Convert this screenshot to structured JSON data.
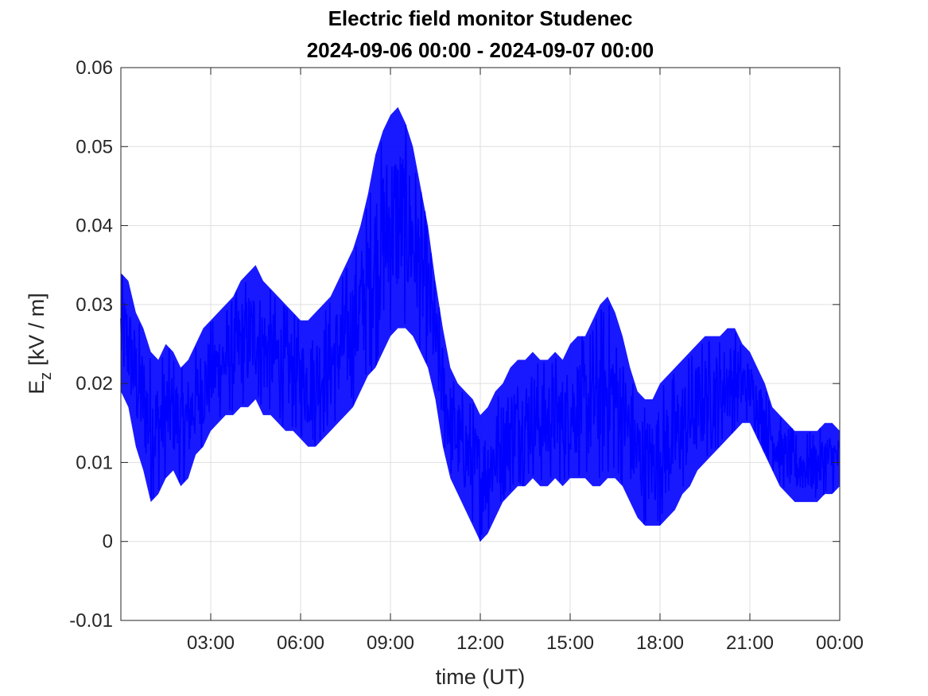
{
  "chart_data": {
    "type": "line",
    "title": "Electric field monitor Studenec",
    "subtitle": "2024-09-06 00:00 - 2024-09-07 00:00",
    "xlabel": "time (UT)",
    "ylabel_main": "E",
    "ylabel_sub": "z",
    "ylabel_unit": "[kV / m]",
    "xlim": [
      "2024-09-06 00:00",
      "2024-09-07 00:00"
    ],
    "ylim": [
      -0.01,
      0.06
    ],
    "x_ticks": [
      {
        "value": "2024-09-06 03:00",
        "label": "03:00"
      },
      {
        "value": "2024-09-06 06:00",
        "label": "06:00"
      },
      {
        "value": "2024-09-06 09:00",
        "label": "09:00"
      },
      {
        "value": "2024-09-06 12:00",
        "label": "12:00"
      },
      {
        "value": "2024-09-06 15:00",
        "label": "15:00"
      },
      {
        "value": "2024-09-06 18:00",
        "label": "18:00"
      },
      {
        "value": "2024-09-06 21:00",
        "label": "21:00"
      },
      {
        "value": "2024-09-07 00:00",
        "label": "00:00"
      }
    ],
    "y_ticks": [
      {
        "value": 0.06,
        "label": "0.06"
      },
      {
        "value": 0.05,
        "label": "0.05"
      },
      {
        "value": 0.04,
        "label": "0.04"
      },
      {
        "value": 0.03,
        "label": "0.03"
      },
      {
        "value": 0.02,
        "label": "0.02"
      },
      {
        "value": 0.01,
        "label": "0.01"
      },
      {
        "value": 0,
        "label": "0"
      },
      {
        "value": -0.01,
        "label": "-0.01"
      }
    ],
    "grid": true,
    "series": [
      {
        "color": "#0000ff",
        "x": [
          "2024-09-06 00:00",
          "2024-09-06 00:15",
          "2024-09-06 00:30",
          "2024-09-06 00:45",
          "2024-09-06 01:00",
          "2024-09-06 01:15",
          "2024-09-06 01:30",
          "2024-09-06 01:45",
          "2024-09-06 02:00",
          "2024-09-06 02:15",
          "2024-09-06 02:30",
          "2024-09-06 02:45",
          "2024-09-06 03:00",
          "2024-09-06 03:15",
          "2024-09-06 03:30",
          "2024-09-06 03:45",
          "2024-09-06 04:00",
          "2024-09-06 04:15",
          "2024-09-06 04:30",
          "2024-09-06 04:45",
          "2024-09-06 05:00",
          "2024-09-06 05:15",
          "2024-09-06 05:30",
          "2024-09-06 05:45",
          "2024-09-06 06:00",
          "2024-09-06 06:15",
          "2024-09-06 06:30",
          "2024-09-06 06:45",
          "2024-09-06 07:00",
          "2024-09-06 07:15",
          "2024-09-06 07:30",
          "2024-09-06 07:45",
          "2024-09-06 08:00",
          "2024-09-06 08:15",
          "2024-09-06 08:30",
          "2024-09-06 08:45",
          "2024-09-06 09:00",
          "2024-09-06 09:15",
          "2024-09-06 09:30",
          "2024-09-06 09:45",
          "2024-09-06 10:00",
          "2024-09-06 10:15",
          "2024-09-06 10:30",
          "2024-09-06 10:45",
          "2024-09-06 11:00",
          "2024-09-06 11:15",
          "2024-09-06 11:30",
          "2024-09-06 11:45",
          "2024-09-06 12:00",
          "2024-09-06 12:15",
          "2024-09-06 12:30",
          "2024-09-06 12:45",
          "2024-09-06 13:00",
          "2024-09-06 13:15",
          "2024-09-06 13:30",
          "2024-09-06 13:45",
          "2024-09-06 14:00",
          "2024-09-06 14:15",
          "2024-09-06 14:30",
          "2024-09-06 14:45",
          "2024-09-06 15:00",
          "2024-09-06 15:15",
          "2024-09-06 15:30",
          "2024-09-06 15:45",
          "2024-09-06 16:00",
          "2024-09-06 16:15",
          "2024-09-06 16:30",
          "2024-09-06 16:45",
          "2024-09-06 17:00",
          "2024-09-06 17:15",
          "2024-09-06 17:30",
          "2024-09-06 17:45",
          "2024-09-06 18:00",
          "2024-09-06 18:15",
          "2024-09-06 18:30",
          "2024-09-06 18:45",
          "2024-09-06 19:00",
          "2024-09-06 19:15",
          "2024-09-06 19:30",
          "2024-09-06 19:45",
          "2024-09-06 20:00",
          "2024-09-06 20:15",
          "2024-09-06 20:30",
          "2024-09-06 20:45",
          "2024-09-06 21:00",
          "2024-09-06 21:15",
          "2024-09-06 21:30",
          "2024-09-06 21:45",
          "2024-09-06 22:00",
          "2024-09-06 22:15",
          "2024-09-06 22:30",
          "2024-09-06 22:45",
          "2024-09-06 23:00",
          "2024-09-06 23:15",
          "2024-09-06 23:30",
          "2024-09-06 23:45",
          "2024-09-07 00:00"
        ],
        "y_min": [
          0.019,
          0.017,
          0.012,
          0.009,
          0.005,
          0.006,
          0.008,
          0.009,
          0.007,
          0.008,
          0.011,
          0.012,
          0.014,
          0.015,
          0.016,
          0.016,
          0.017,
          0.017,
          0.018,
          0.016,
          0.016,
          0.015,
          0.014,
          0.014,
          0.013,
          0.012,
          0.012,
          0.013,
          0.014,
          0.015,
          0.016,
          0.017,
          0.019,
          0.021,
          0.022,
          0.024,
          0.026,
          0.027,
          0.027,
          0.026,
          0.024,
          0.022,
          0.018,
          0.012,
          0.008,
          0.006,
          0.004,
          0.002,
          0.0,
          0.001,
          0.003,
          0.005,
          0.006,
          0.007,
          0.007,
          0.008,
          0.007,
          0.007,
          0.008,
          0.007,
          0.008,
          0.008,
          0.008,
          0.007,
          0.007,
          0.008,
          0.008,
          0.007,
          0.005,
          0.003,
          0.002,
          0.002,
          0.002,
          0.003,
          0.004,
          0.006,
          0.007,
          0.009,
          0.01,
          0.011,
          0.012,
          0.013,
          0.014,
          0.015,
          0.015,
          0.013,
          0.011,
          0.009,
          0.007,
          0.006,
          0.005,
          0.005,
          0.005,
          0.005,
          0.006,
          0.006,
          0.007
        ],
        "y_max": [
          0.034,
          0.033,
          0.029,
          0.027,
          0.024,
          0.023,
          0.025,
          0.024,
          0.022,
          0.023,
          0.025,
          0.027,
          0.028,
          0.029,
          0.03,
          0.031,
          0.033,
          0.034,
          0.035,
          0.033,
          0.032,
          0.031,
          0.03,
          0.029,
          0.028,
          0.028,
          0.029,
          0.03,
          0.031,
          0.033,
          0.035,
          0.037,
          0.04,
          0.044,
          0.049,
          0.052,
          0.054,
          0.055,
          0.053,
          0.05,
          0.045,
          0.04,
          0.033,
          0.027,
          0.022,
          0.02,
          0.019,
          0.018,
          0.016,
          0.017,
          0.019,
          0.02,
          0.022,
          0.023,
          0.023,
          0.024,
          0.023,
          0.023,
          0.024,
          0.023,
          0.025,
          0.026,
          0.026,
          0.028,
          0.03,
          0.031,
          0.029,
          0.026,
          0.022,
          0.019,
          0.018,
          0.018,
          0.02,
          0.021,
          0.022,
          0.023,
          0.024,
          0.025,
          0.026,
          0.026,
          0.026,
          0.027,
          0.027,
          0.025,
          0.024,
          0.022,
          0.02,
          0.017,
          0.016,
          0.015,
          0.014,
          0.014,
          0.014,
          0.014,
          0.015,
          0.015,
          0.014
        ]
      }
    ]
  }
}
